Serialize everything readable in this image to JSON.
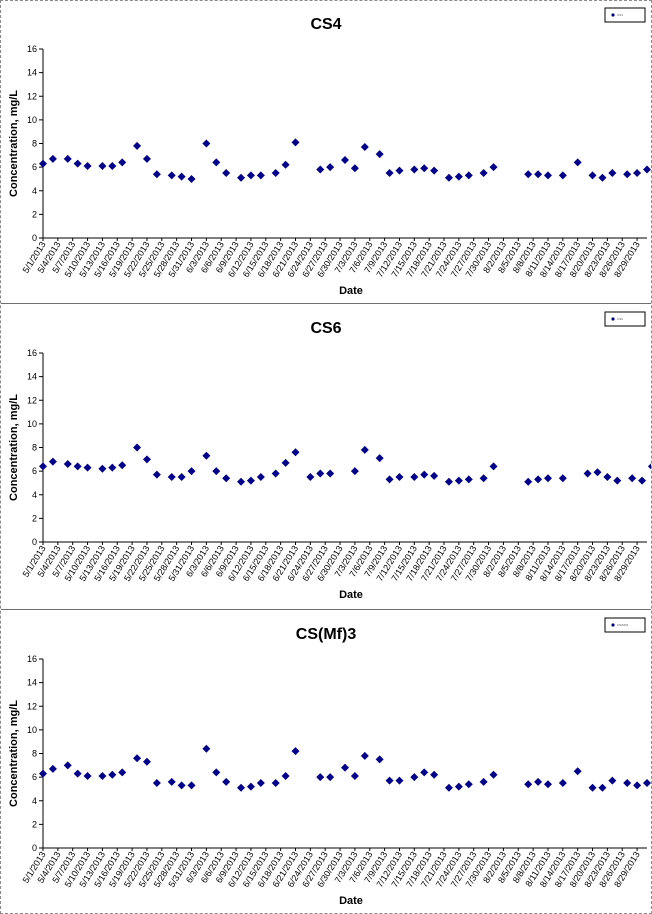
{
  "charts": [
    {
      "chart_data": {
        "type": "scatter",
        "title": "CS4",
        "xlabel": "Date",
        "ylabel": "Concentration, mg/L",
        "ylim": [
          0,
          16
        ],
        "yticks": [
          0,
          2,
          4,
          6,
          8,
          10,
          12,
          14,
          16
        ],
        "x_range": [
          "5/1/2013",
          "8/31/2013"
        ],
        "xticks": [
          "5/1/2013",
          "5/4/2013",
          "5/7/2013",
          "5/10/2013",
          "5/13/2013",
          "5/16/2013",
          "5/19/2013",
          "5/22/2013",
          "5/25/2013",
          "5/28/2013",
          "5/31/2013",
          "6/3/2013",
          "6/6/2013",
          "6/9/2013",
          "6/12/2013",
          "6/15/2013",
          "6/18/2013",
          "6/21/2013",
          "6/24/2013",
          "6/27/2013",
          "6/30/2013",
          "7/3/2013",
          "7/6/2013",
          "7/9/2013",
          "7/12/2013",
          "7/15/2013",
          "7/18/2013",
          "7/21/2013",
          "7/24/2013",
          "7/27/2013",
          "7/30/2013",
          "8/2/2013",
          "8/5/2013",
          "8/8/2013",
          "8/11/2013",
          "8/14/2013",
          "8/17/2013",
          "8/20/2013",
          "8/23/2013",
          "8/26/2013",
          "8/29/2013"
        ],
        "grid": false,
        "legend": "top-right",
        "marker_color": "#00008B",
        "series": [
          {
            "name": "CS4",
            "x": [
              "5/1/2013",
              "5/3/2013",
              "5/6/2013",
              "5/8/2013",
              "5/10/2013",
              "5/13/2013",
              "5/15/2013",
              "5/17/2013",
              "5/20/2013",
              "5/22/2013",
              "5/24/2013",
              "5/27/2013",
              "5/29/2013",
              "5/31/2013",
              "6/3/2013",
              "6/5/2013",
              "6/7/2013",
              "6/10/2013",
              "6/12/2013",
              "6/14/2013",
              "6/17/2013",
              "6/19/2013",
              "6/21/2013",
              "6/26/2013",
              "6/28/2013",
              "7/1/2013",
              "7/3/2013",
              "7/5/2013",
              "7/8/2013",
              "7/10/2013",
              "7/12/2013",
              "7/15/2013",
              "7/17/2013",
              "7/19/2013",
              "7/22/2013",
              "7/24/2013",
              "7/26/2013",
              "7/29/2013",
              "7/31/2013",
              "8/7/2013",
              "8/9/2013",
              "8/11/2013",
              "8/14/2013",
              "8/17/2013",
              "8/20/2013",
              "8/22/2013",
              "8/24/2013",
              "8/27/2013",
              "8/29/2013",
              "8/31/2013"
            ],
            "y": [
              6.3,
              6.7,
              6.7,
              6.3,
              6.1,
              6.1,
              6.1,
              6.4,
              7.8,
              6.7,
              5.4,
              5.3,
              5.2,
              5.0,
              8.0,
              6.4,
              5.5,
              5.1,
              5.3,
              5.3,
              5.5,
              6.2,
              8.1,
              5.8,
              6.0,
              6.6,
              5.9,
              7.7,
              7.1,
              5.5,
              5.7,
              5.8,
              5.9,
              5.7,
              5.1,
              5.2,
              5.3,
              5.5,
              6.0,
              5.4,
              5.4,
              5.3,
              5.3,
              6.4,
              5.3,
              5.1,
              5.5,
              5.4,
              5.5,
              5.8
            ]
          }
        ]
      }
    },
    {
      "chart_data": {
        "type": "scatter",
        "title": "CS6",
        "xlabel": "Date",
        "ylabel": "Concentration, mg/L",
        "ylim": [
          0,
          16
        ],
        "yticks": [
          0,
          2,
          4,
          6,
          8,
          10,
          12,
          14,
          16
        ],
        "x_range": [
          "5/1/2013",
          "8/31/2013"
        ],
        "xticks": [
          "5/1/2013",
          "5/4/2013",
          "5/7/2013",
          "5/10/2013",
          "5/13/2013",
          "5/16/2013",
          "5/19/2013",
          "5/22/2013",
          "5/25/2013",
          "5/28/2013",
          "5/31/2013",
          "6/3/2013",
          "6/6/2013",
          "6/9/2013",
          "6/12/2013",
          "6/15/2013",
          "6/18/2013",
          "6/21/2013",
          "6/24/2013",
          "6/27/2013",
          "6/30/2013",
          "7/3/2013",
          "7/6/2013",
          "7/9/2013",
          "7/12/2013",
          "7/15/2013",
          "7/18/2013",
          "7/21/2013",
          "7/24/2013",
          "7/27/2013",
          "7/30/2013",
          "8/2/2013",
          "8/5/2013",
          "8/8/2013",
          "8/11/2013",
          "8/14/2013",
          "8/17/2013",
          "8/20/2013",
          "8/23/2013",
          "8/26/2013",
          "8/29/2013"
        ],
        "grid": false,
        "legend": "top-right",
        "marker_color": "#00008B",
        "series": [
          {
            "name": "CS6",
            "x": [
              "5/1/2013",
              "5/3/2013",
              "5/6/2013",
              "5/8/2013",
              "5/10/2013",
              "5/13/2013",
              "5/15/2013",
              "5/17/2013",
              "5/20/2013",
              "5/22/2013",
              "5/24/2013",
              "5/27/2013",
              "5/29/2013",
              "5/31/2013",
              "6/3/2013",
              "6/5/2013",
              "6/7/2013",
              "6/10/2013",
              "6/12/2013",
              "6/14/2013",
              "6/17/2013",
              "6/19/2013",
              "6/21/2013",
              "6/24/2013",
              "6/26/2013",
              "6/28/2013",
              "7/3/2013",
              "7/5/2013",
              "7/8/2013",
              "7/10/2013",
              "7/12/2013",
              "7/15/2013",
              "7/17/2013",
              "7/19/2013",
              "7/22/2013",
              "7/24/2013",
              "7/26/2013",
              "7/29/2013",
              "7/31/2013",
              "8/7/2013",
              "8/9/2013",
              "8/11/2013",
              "8/14/2013",
              "8/19/2013",
              "8/21/2013",
              "8/23/2013",
              "8/25/2013",
              "8/28/2013",
              "8/30/2013",
              "9/1/2013"
            ],
            "y": [
              6.4,
              6.8,
              6.6,
              6.4,
              6.3,
              6.2,
              6.3,
              6.5,
              8.0,
              7.0,
              5.7,
              5.5,
              5.5,
              6.0,
              7.3,
              6.0,
              5.4,
              5.1,
              5.2,
              5.5,
              5.8,
              6.7,
              7.6,
              5.5,
              5.8,
              5.8,
              6.0,
              7.8,
              7.1,
              5.3,
              5.5,
              5.5,
              5.7,
              5.6,
              5.1,
              5.2,
              5.3,
              5.4,
              6.4,
              5.1,
              5.3,
              5.4,
              5.4,
              5.8,
              5.9,
              5.5,
              5.2,
              5.4,
              5.2,
              6.4
            ]
          }
        ]
      }
    },
    {
      "chart_data": {
        "type": "scatter",
        "title": "CS(Mf)3",
        "xlabel": "Date",
        "ylabel": "Concentration, mg/L",
        "ylim": [
          0,
          16
        ],
        "yticks": [
          0,
          2,
          4,
          6,
          8,
          10,
          12,
          14,
          16
        ],
        "x_range": [
          "5/1/2013",
          "8/31/2013"
        ],
        "xticks": [
          "5/1/2013",
          "5/4/2013",
          "5/7/2013",
          "5/10/2013",
          "5/13/2013",
          "5/16/2013",
          "5/19/2013",
          "5/22/2013",
          "5/25/2013",
          "5/28/2013",
          "5/31/2013",
          "6/3/2013",
          "6/6/2013",
          "6/9/2013",
          "6/12/2013",
          "6/15/2013",
          "6/18/2013",
          "6/21/2013",
          "6/24/2013",
          "6/27/2013",
          "6/30/2013",
          "7/3/2013",
          "7/6/2013",
          "7/9/2013",
          "7/12/2013",
          "7/15/2013",
          "7/18/2013",
          "7/21/2013",
          "7/24/2013",
          "7/27/2013",
          "7/30/2013",
          "8/2/2013",
          "8/5/2013",
          "8/8/2013",
          "8/11/2013",
          "8/14/2013",
          "8/17/2013",
          "8/20/2013",
          "8/23/2013",
          "8/26/2013",
          "8/29/2013"
        ],
        "grid": false,
        "legend": "top-right",
        "marker_color": "#00008B",
        "series": [
          {
            "name": "CS(Mf)3",
            "x": [
              "5/1/2013",
              "5/3/2013",
              "5/6/2013",
              "5/8/2013",
              "5/10/2013",
              "5/13/2013",
              "5/15/2013",
              "5/17/2013",
              "5/20/2013",
              "5/22/2013",
              "5/24/2013",
              "5/27/2013",
              "5/29/2013",
              "5/31/2013",
              "6/3/2013",
              "6/5/2013",
              "6/7/2013",
              "6/10/2013",
              "6/12/2013",
              "6/14/2013",
              "6/17/2013",
              "6/19/2013",
              "6/21/2013",
              "6/26/2013",
              "6/28/2013",
              "7/1/2013",
              "7/3/2013",
              "7/5/2013",
              "7/8/2013",
              "7/10/2013",
              "7/12/2013",
              "7/15/2013",
              "7/17/2013",
              "7/19/2013",
              "7/22/2013",
              "7/24/2013",
              "7/26/2013",
              "7/29/2013",
              "7/31/2013",
              "8/7/2013",
              "8/9/2013",
              "8/11/2013",
              "8/14/2013",
              "8/17/2013",
              "8/20/2013",
              "8/22/2013",
              "8/24/2013",
              "8/27/2013",
              "8/29/2013",
              "8/31/2013"
            ],
            "y": [
              6.3,
              6.7,
              7.0,
              6.3,
              6.1,
              6.1,
              6.2,
              6.4,
              7.6,
              7.3,
              5.5,
              5.6,
              5.3,
              5.3,
              8.4,
              6.4,
              5.6,
              5.1,
              5.2,
              5.5,
              5.5,
              6.1,
              8.2,
              6.0,
              6.0,
              6.8,
              6.1,
              7.8,
              7.5,
              5.7,
              5.7,
              6.0,
              6.4,
              6.2,
              5.1,
              5.2,
              5.4,
              5.6,
              6.2,
              5.4,
              5.6,
              5.4,
              5.5,
              6.5,
              5.1,
              5.1,
              5.7,
              5.5,
              5.3,
              5.5
            ]
          }
        ]
      }
    }
  ]
}
